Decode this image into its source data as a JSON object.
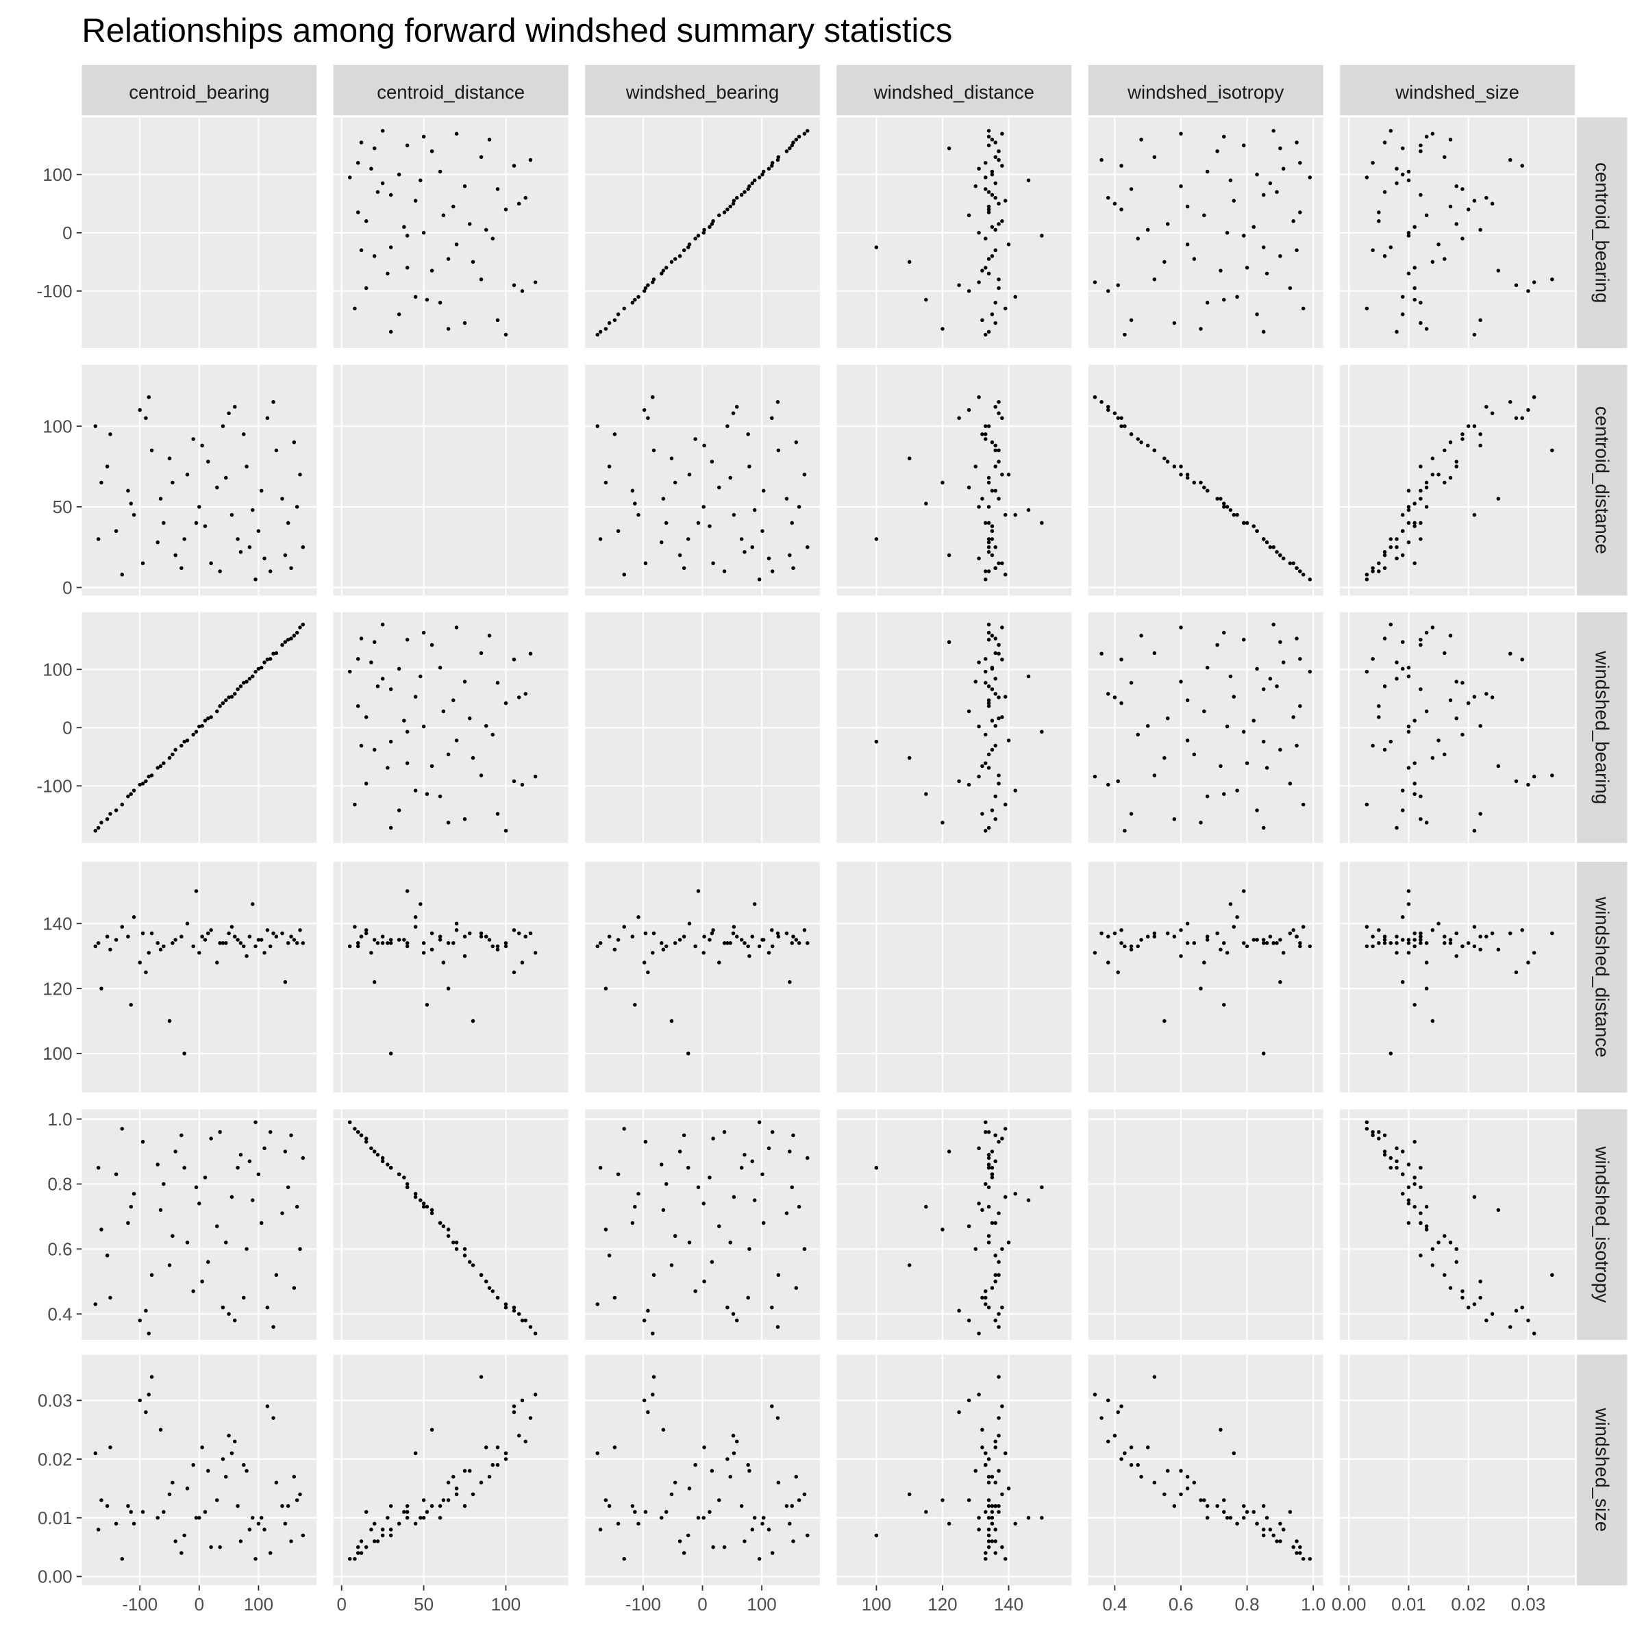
{
  "chart_data": {
    "type": "scatter_matrix",
    "title": "Relationships among forward windshed summary statistics",
    "variables": [
      {
        "name": "centroid_bearing",
        "lim": [
          -198,
          198
        ],
        "ticks": [
          -100,
          0,
          100
        ]
      },
      {
        "name": "centroid_distance",
        "lim": [
          -5,
          138
        ],
        "ticks": [
          0,
          50,
          100
        ]
      },
      {
        "name": "windshed_bearing",
        "lim": [
          -198,
          198
        ],
        "ticks": [
          -100,
          0,
          100
        ]
      },
      {
        "name": "windshed_distance",
        "lim": [
          88,
          159
        ],
        "ticks": [
          100,
          120,
          140
        ]
      },
      {
        "name": "windshed_isotropy",
        "lim": [
          0.32,
          1.03
        ],
        "ticks": [
          0.4,
          0.6,
          0.8,
          {
            "value": 1,
            "label": "1.0"
          }
        ]
      },
      {
        "name": "windshed_size",
        "lim": [
          -0.0015,
          0.0378
        ],
        "ticks": [
          {
            "value": 0,
            "label": "0.00"
          },
          0.01,
          0.02,
          0.03
        ]
      }
    ],
    "color": "#000000",
    "grid": true,
    "observations": [
      [
        -170,
        30,
        -172,
        134,
        0.85,
        0.008
      ],
      [
        -150,
        95,
        -148,
        132,
        0.45,
        0.022
      ],
      [
        -120,
        60,
        -118,
        136,
        0.68,
        0.012
      ],
      [
        -100,
        110,
        -98,
        128,
        0.38,
        0.03
      ],
      [
        -80,
        85,
        -82,
        137,
        0.52,
        0.034
      ],
      [
        -60,
        40,
        -61,
        133,
        0.8,
        0.011
      ],
      [
        -40,
        20,
        -38,
        135,
        0.9,
        0.006
      ],
      [
        -20,
        70,
        -22,
        140,
        0.62,
        0.015
      ],
      [
        0,
        50,
        2,
        131,
        0.74,
        0.01
      ],
      [
        20,
        15,
        18,
        138,
        0.94,
        0.005
      ],
      [
        40,
        100,
        42,
        134,
        0.42,
        0.02
      ],
      [
        60,
        112,
        58,
        136,
        0.38,
        0.023
      ],
      [
        80,
        75,
        79,
        130,
        0.6,
        0.018
      ],
      [
        100,
        35,
        101,
        135,
        0.83,
        0.009
      ],
      [
        120,
        10,
        118,
        133,
        0.96,
        0.004
      ],
      [
        140,
        55,
        142,
        137,
        0.71,
        0.012
      ],
      [
        160,
        90,
        158,
        135,
        0.48,
        0.017
      ],
      [
        175,
        25,
        177,
        134,
        0.88,
        0.007
      ],
      [
        -165,
        65,
        -163,
        120,
        0.66,
        0.013
      ],
      [
        -130,
        8,
        -132,
        139,
        0.97,
        0.003
      ],
      [
        -110,
        45,
        -108,
        142,
        0.77,
        0.009
      ],
      [
        -90,
        105,
        -92,
        125,
        0.41,
        0.028
      ],
      [
        -70,
        28,
        -69,
        134,
        0.86,
        0.01
      ],
      [
        -50,
        80,
        -52,
        110,
        0.55,
        0.014
      ],
      [
        -30,
        12,
        -31,
        136,
        0.95,
        0.004
      ],
      [
        -10,
        92,
        -12,
        133,
        0.47,
        0.019
      ],
      [
        10,
        38,
        12,
        135,
        0.82,
        0.011
      ],
      [
        30,
        62,
        28,
        128,
        0.67,
        0.013
      ],
      [
        50,
        108,
        52,
        137,
        0.4,
        0.024
      ],
      [
        70,
        22,
        71,
        134,
        0.89,
        0.006
      ],
      [
        90,
        48,
        88,
        146,
        0.75,
        0.01
      ],
      [
        110,
        18,
        112,
        131,
        0.91,
        0.008
      ],
      [
        130,
        85,
        128,
        136,
        0.52,
        0.016
      ],
      [
        150,
        40,
        151,
        134,
        0.79,
        0.012
      ],
      [
        170,
        70,
        172,
        138,
        0.6,
        0.014
      ],
      [
        -175,
        100,
        -177,
        133,
        0.43,
        0.021
      ],
      [
        -140,
        35,
        -142,
        135,
        0.83,
        0.009
      ],
      [
        -95,
        15,
        -96,
        137,
        0.93,
        0.011
      ],
      [
        -65,
        55,
        -66,
        132,
        0.72,
        0.025
      ],
      [
        -25,
        30,
        -24,
        100,
        0.85,
        0.007
      ],
      [
        5,
        88,
        3,
        136,
        0.5,
        0.022
      ],
      [
        35,
        10,
        37,
        134,
        0.96,
        0.005
      ],
      [
        55,
        45,
        53,
        139,
        0.76,
        0.021
      ],
      [
        75,
        95,
        77,
        133,
        0.45,
        0.019
      ],
      [
        105,
        60,
        103,
        135,
        0.68,
        0.01
      ],
      [
        125,
        115,
        127,
        137,
        0.36,
        0.027
      ],
      [
        145,
        20,
        147,
        122,
        0.9,
        0.009
      ],
      [
        165,
        50,
        163,
        134,
        0.73,
        0.013
      ],
      [
        -155,
        75,
        -157,
        136,
        0.58,
        0.012
      ],
      [
        -85,
        118,
        -84,
        131,
        0.34,
        0.031
      ],
      [
        -45,
        65,
        -46,
        134,
        0.64,
        0.016
      ],
      [
        15,
        78,
        16,
        137,
        0.56,
        0.018
      ],
      [
        65,
        30,
        66,
        135,
        0.85,
        0.012
      ],
      [
        95,
        5,
        96,
        133,
        0.99,
        0.003
      ],
      [
        115,
        105,
        117,
        138,
        0.42,
        0.029
      ],
      [
        155,
        12,
        153,
        136,
        0.95,
        0.006
      ],
      [
        -115,
        52,
        -114,
        115,
        0.73,
        0.011
      ],
      [
        -5,
        40,
        -7,
        150,
        0.79,
        0.01
      ],
      [
        45,
        68,
        47,
        134,
        0.62,
        0.017
      ],
      [
        85,
        25,
        84,
        136,
        0.87,
        0.008
      ]
    ]
  }
}
